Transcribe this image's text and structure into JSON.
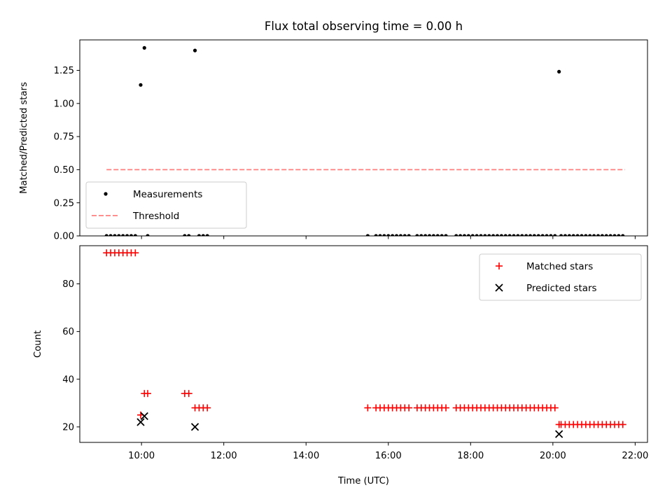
{
  "chart_data": [
    {
      "type": "scatter",
      "title": "Flux total observing time = 0.00 h",
      "ylabel": "Matched/Predicted stars",
      "ylim": [
        0,
        1.48
      ],
      "xlim": [
        8.5,
        22.3
      ],
      "yticks": [
        "0.00",
        "0.25",
        "0.50",
        "0.75",
        "1.00",
        "1.25"
      ],
      "legend": {
        "position": "lower-left",
        "entries": [
          "Measurements",
          "Threshold"
        ]
      },
      "series": [
        {
          "name": "Measurements",
          "marker": "dot",
          "color": "#000000",
          "points": [
            [
              9.98,
              1.14
            ],
            [
              10.07,
              1.42
            ],
            [
              11.3,
              1.4
            ],
            [
              20.15,
              1.24
            ],
            [
              9.15,
              0
            ],
            [
              9.25,
              0
            ],
            [
              9.35,
              0
            ],
            [
              9.45,
              0
            ],
            [
              9.55,
              0
            ],
            [
              9.65,
              0
            ],
            [
              9.75,
              0
            ],
            [
              9.85,
              0
            ],
            [
              10.15,
              0
            ],
            [
              11.05,
              0
            ],
            [
              11.15,
              0
            ],
            [
              11.4,
              0
            ],
            [
              11.5,
              0
            ],
            [
              11.6,
              0
            ],
            [
              15.5,
              0
            ],
            [
              15.7,
              0
            ],
            [
              15.8,
              0
            ],
            [
              15.9,
              0
            ],
            [
              16.0,
              0
            ],
            [
              16.1,
              0
            ],
            [
              16.2,
              0
            ],
            [
              16.3,
              0
            ],
            [
              16.4,
              0
            ],
            [
              16.5,
              0
            ],
            [
              16.7,
              0
            ],
            [
              16.8,
              0
            ],
            [
              16.9,
              0
            ],
            [
              17.0,
              0
            ],
            [
              17.1,
              0
            ],
            [
              17.2,
              0
            ],
            [
              17.3,
              0
            ],
            [
              17.4,
              0
            ],
            [
              17.65,
              0
            ],
            [
              17.75,
              0
            ],
            [
              17.85,
              0
            ],
            [
              17.95,
              0
            ],
            [
              18.05,
              0
            ],
            [
              18.15,
              0
            ],
            [
              18.25,
              0
            ],
            [
              18.35,
              0
            ],
            [
              18.45,
              0
            ],
            [
              18.55,
              0
            ],
            [
              18.65,
              0
            ],
            [
              18.75,
              0
            ],
            [
              18.85,
              0
            ],
            [
              18.95,
              0
            ],
            [
              19.05,
              0
            ],
            [
              19.15,
              0
            ],
            [
              19.25,
              0
            ],
            [
              19.35,
              0
            ],
            [
              19.45,
              0
            ],
            [
              19.55,
              0
            ],
            [
              19.65,
              0
            ],
            [
              19.75,
              0
            ],
            [
              19.85,
              0
            ],
            [
              19.95,
              0
            ],
            [
              20.05,
              0
            ],
            [
              20.2,
              0
            ],
            [
              20.3,
              0
            ],
            [
              20.4,
              0
            ],
            [
              20.5,
              0
            ],
            [
              20.6,
              0
            ],
            [
              20.7,
              0
            ],
            [
              20.8,
              0
            ],
            [
              20.9,
              0
            ],
            [
              21.0,
              0
            ],
            [
              21.1,
              0
            ],
            [
              21.2,
              0
            ],
            [
              21.3,
              0
            ],
            [
              21.4,
              0
            ],
            [
              21.5,
              0
            ],
            [
              21.6,
              0
            ],
            [
              21.7,
              0
            ]
          ]
        },
        {
          "name": "Threshold",
          "marker": "dashed-line",
          "color": "#ff7f7f",
          "points": [
            [
              9.15,
              0.5
            ],
            [
              21.75,
              0.5
            ]
          ]
        }
      ]
    },
    {
      "type": "scatter",
      "xlabel": "Time (UTC)",
      "ylabel": "Count",
      "ylim": [
        13.5,
        96
      ],
      "xlim": [
        8.5,
        22.3
      ],
      "xticks": [
        {
          "value": 10,
          "label": "10:00"
        },
        {
          "value": 12,
          "label": "12:00"
        },
        {
          "value": 14,
          "label": "14:00"
        },
        {
          "value": 16,
          "label": "16:00"
        },
        {
          "value": 18,
          "label": "18:00"
        },
        {
          "value": 20,
          "label": "20:00"
        },
        {
          "value": 22,
          "label": "22:00"
        }
      ],
      "yticks": [
        20,
        40,
        60,
        80
      ],
      "legend": {
        "position": "upper-right",
        "entries": [
          "Matched stars",
          "Predicted stars"
        ]
      },
      "series": [
        {
          "name": "Matched stars",
          "marker": "plus",
          "color": "#ff0000",
          "points": [
            [
              9.15,
              93
            ],
            [
              9.25,
              93
            ],
            [
              9.35,
              93
            ],
            [
              9.45,
              93
            ],
            [
              9.55,
              93
            ],
            [
              9.65,
              93
            ],
            [
              9.75,
              93
            ],
            [
              9.85,
              93
            ],
            [
              9.98,
              25
            ],
            [
              10.07,
              34
            ],
            [
              10.15,
              34
            ],
            [
              11.05,
              34
            ],
            [
              11.15,
              34
            ],
            [
              11.3,
              28
            ],
            [
              11.4,
              28
            ],
            [
              11.5,
              28
            ],
            [
              11.6,
              28
            ],
            [
              15.5,
              28
            ],
            [
              15.7,
              28
            ],
            [
              15.8,
              28
            ],
            [
              15.9,
              28
            ],
            [
              16.0,
              28
            ],
            [
              16.1,
              28
            ],
            [
              16.2,
              28
            ],
            [
              16.3,
              28
            ],
            [
              16.4,
              28
            ],
            [
              16.5,
              28
            ],
            [
              16.7,
              28
            ],
            [
              16.8,
              28
            ],
            [
              16.9,
              28
            ],
            [
              17.0,
              28
            ],
            [
              17.1,
              28
            ],
            [
              17.2,
              28
            ],
            [
              17.3,
              28
            ],
            [
              17.4,
              28
            ],
            [
              17.65,
              28
            ],
            [
              17.75,
              28
            ],
            [
              17.85,
              28
            ],
            [
              17.95,
              28
            ],
            [
              18.05,
              28
            ],
            [
              18.15,
              28
            ],
            [
              18.25,
              28
            ],
            [
              18.35,
              28
            ],
            [
              18.45,
              28
            ],
            [
              18.55,
              28
            ],
            [
              18.65,
              28
            ],
            [
              18.75,
              28
            ],
            [
              18.85,
              28
            ],
            [
              18.95,
              28
            ],
            [
              19.05,
              28
            ],
            [
              19.15,
              28
            ],
            [
              19.25,
              28
            ],
            [
              19.35,
              28
            ],
            [
              19.45,
              28
            ],
            [
              19.55,
              28
            ],
            [
              19.65,
              28
            ],
            [
              19.75,
              28
            ],
            [
              19.85,
              28
            ],
            [
              19.95,
              28
            ],
            [
              20.05,
              28
            ],
            [
              20.15,
              21
            ],
            [
              20.2,
              21
            ],
            [
              20.3,
              21
            ],
            [
              20.4,
              21
            ],
            [
              20.5,
              21
            ],
            [
              20.6,
              21
            ],
            [
              20.7,
              21
            ],
            [
              20.8,
              21
            ],
            [
              20.9,
              21
            ],
            [
              21.0,
              21
            ],
            [
              21.1,
              21
            ],
            [
              21.2,
              21
            ],
            [
              21.3,
              21
            ],
            [
              21.4,
              21
            ],
            [
              21.5,
              21
            ],
            [
              21.6,
              21
            ],
            [
              21.7,
              21
            ]
          ]
        },
        {
          "name": "Predicted stars",
          "marker": "x",
          "color": "#000000",
          "points": [
            [
              9.98,
              22
            ],
            [
              10.07,
              24.5
            ],
            [
              11.3,
              20
            ],
            [
              20.15,
              17
            ]
          ]
        }
      ]
    }
  ]
}
